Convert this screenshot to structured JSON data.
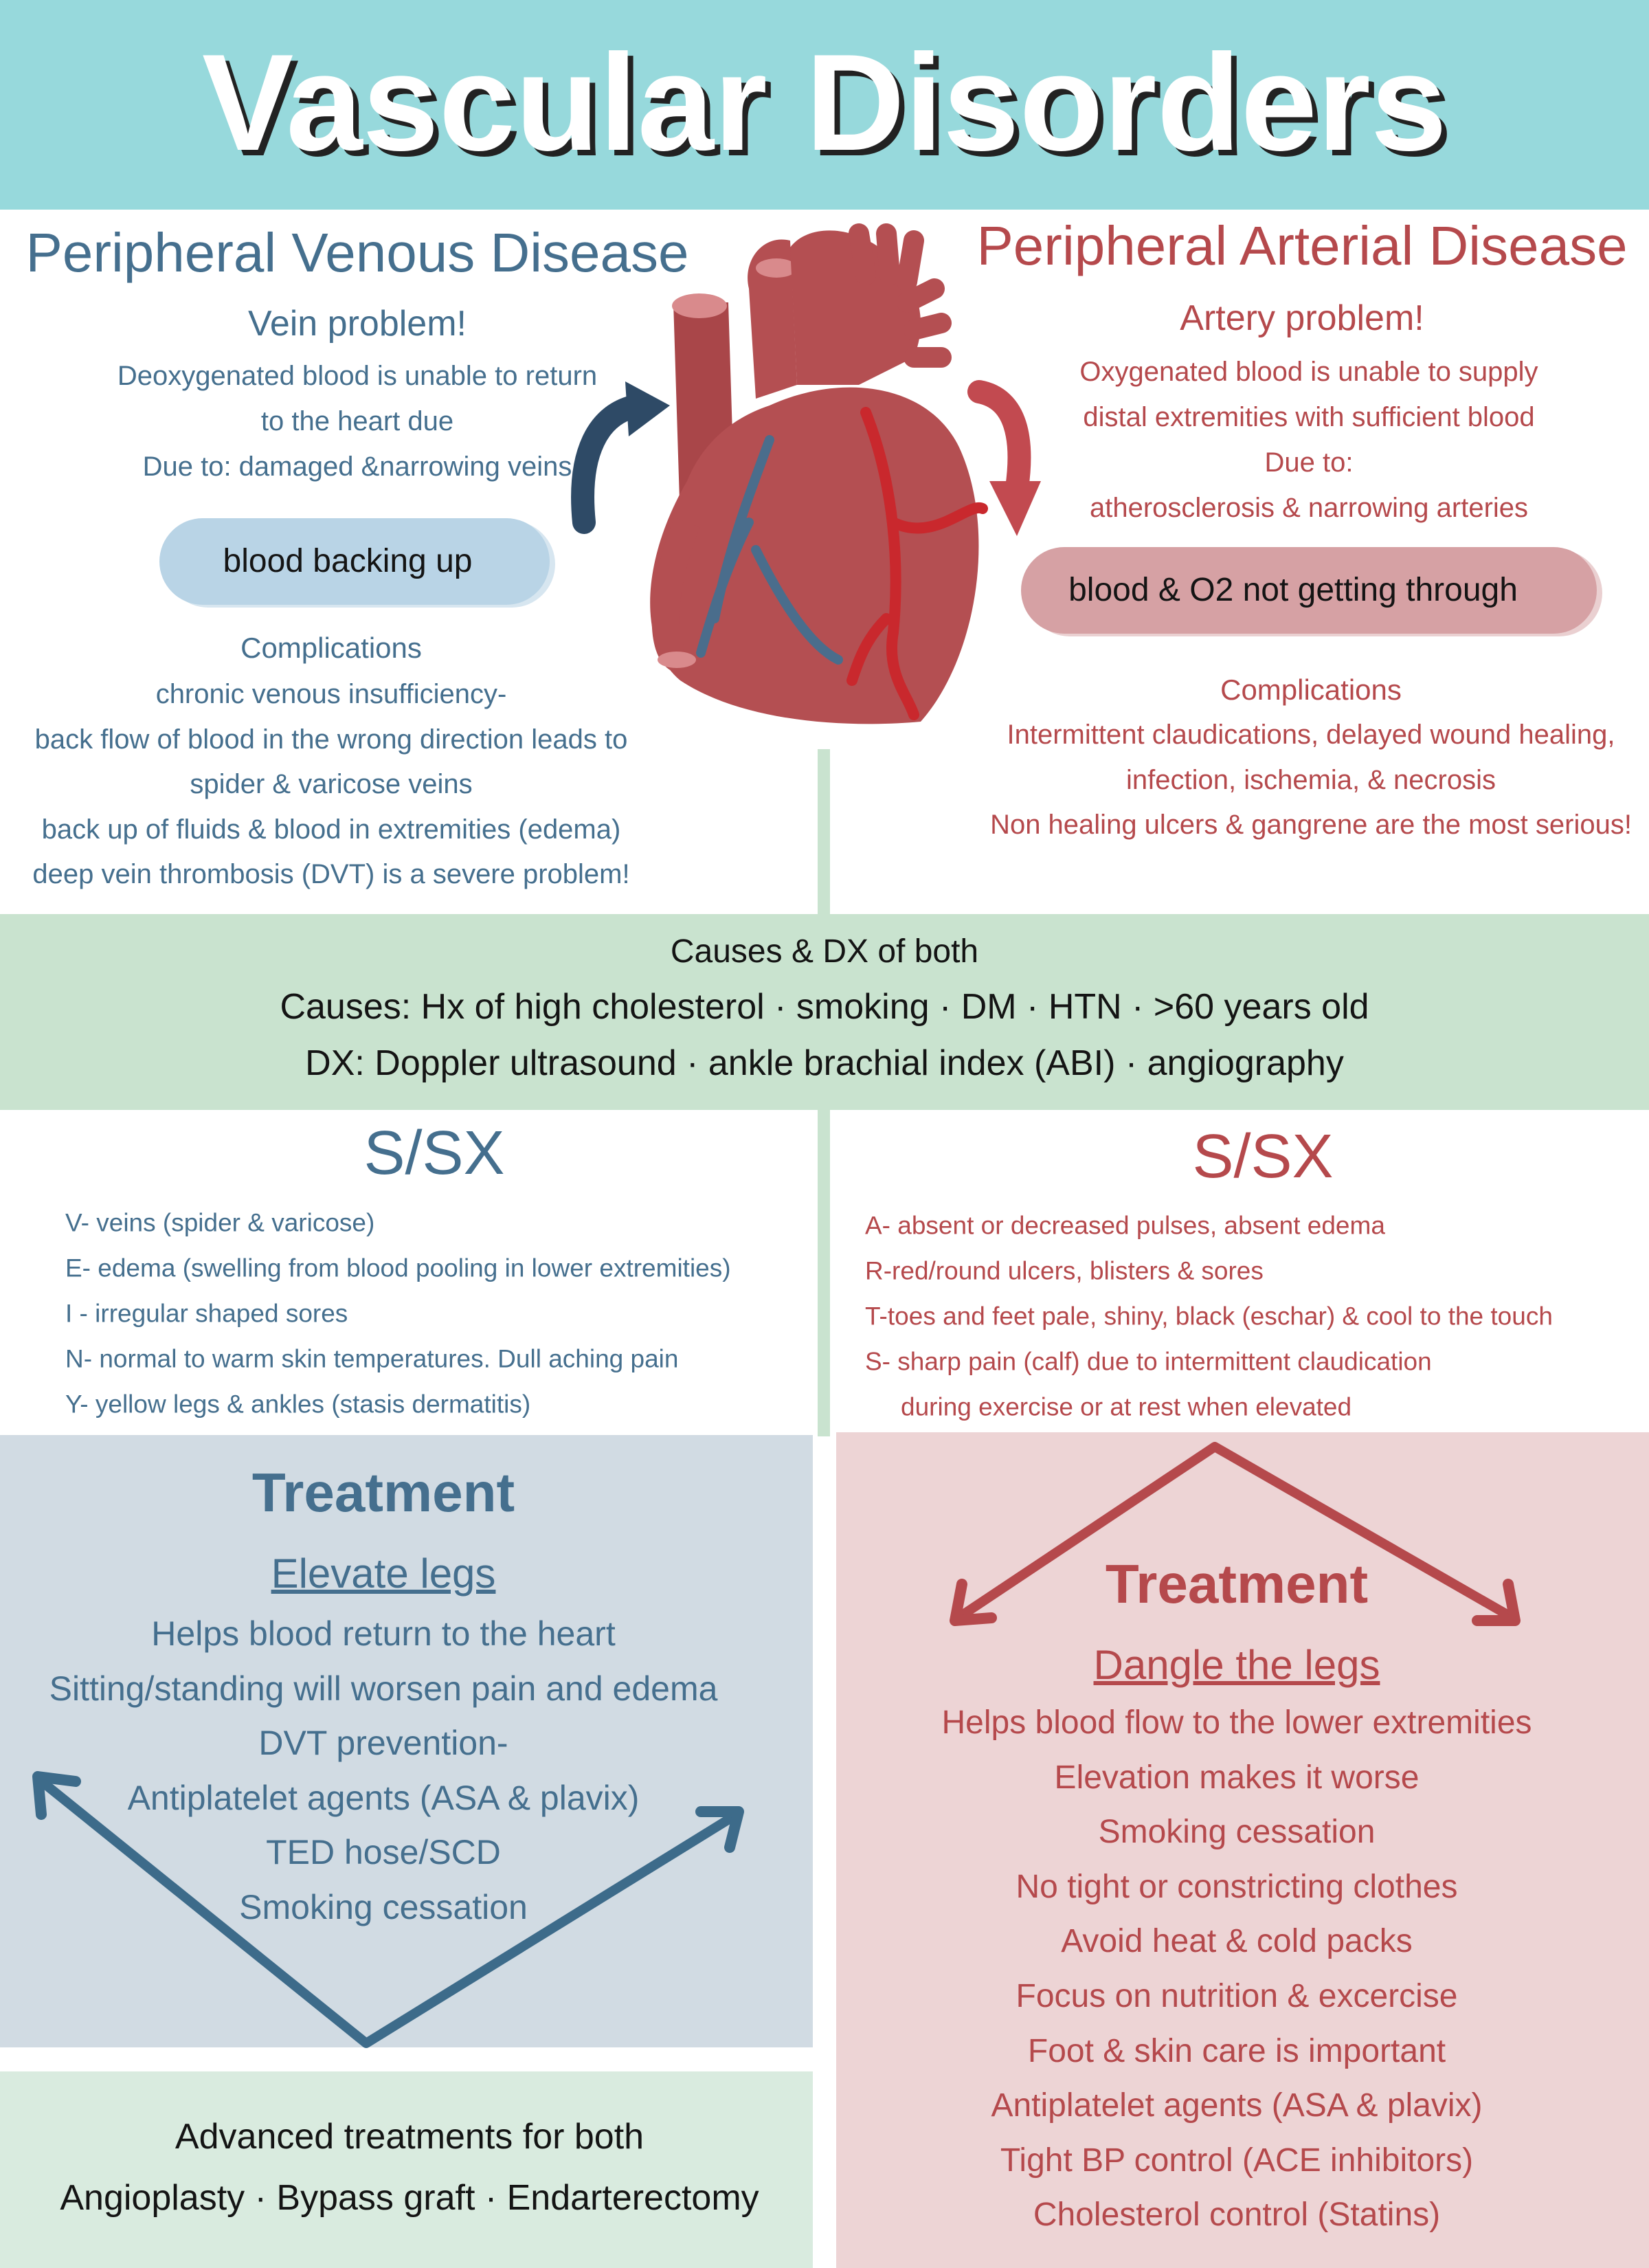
{
  "header": {
    "title": "Vascular Disorders"
  },
  "venous": {
    "title": "Peripheral Venous Disease",
    "subtitle": "Vein problem!",
    "description": [
      "Deoxygenated blood is unable to return",
      "to the heart due",
      "Due to: damaged &narrowing veins"
    ],
    "callout": "blood backing up",
    "complications_title": "Complications",
    "complications": [
      "chronic venous insufficiency-",
      "back flow of blood in the wrong direction  leads to",
      "spider & varicose veins",
      "back up of fluids & blood in extremities (edema)",
      "deep vein thrombosis (DVT) is a severe problem!"
    ]
  },
  "arterial": {
    "title": "Peripheral Arterial Disease",
    "subtitle": "Artery problem!",
    "description": [
      "Oxygenated blood is unable to supply",
      "distal extremities with sufficient blood",
      "Due to:",
      "atherosclerosis & narrowing arteries"
    ],
    "callout": "blood & O2 not getting through",
    "complications_title": "Complications",
    "complications": [
      "Intermittent claudications, delayed wound healing,",
      "infection, ischemia, & necrosis",
      "Non healing ulcers & gangrene are the most serious!"
    ]
  },
  "causes_dx": {
    "title": "Causes & DX of both",
    "lines": [
      "Causes: Hx of high cholesterol · smoking · DM · HTN · >60 years old",
      "DX: Doppler ultrasound · ankle brachial index (ABI) · angiography"
    ]
  },
  "venous_ssx": {
    "title": "S/SX",
    "items": [
      "V- veins (spider & varicose)",
      "E- edema (swelling from blood pooling in lower extremities)",
      "I -  irregular shaped sores",
      "N- normal to warm skin temperatures.  Dull aching pain",
      "Y- yellow legs & ankles (stasis dermatitis)"
    ]
  },
  "arterial_ssx": {
    "title": "S/SX",
    "items": [
      "A- absent or decreased pulses, absent edema",
      "R-red/round  ulcers, blisters & sores",
      "T-toes and feet pale, shiny, black (eschar) & cool to the touch",
      "S- sharp pain (calf) due to intermittent claudication",
      "during exercise or at rest when elevated"
    ]
  },
  "venous_treatment": {
    "title": "Treatment",
    "subtitle": "Elevate legs",
    "items": [
      "Helps blood return to the heart",
      "Sitting/standing will worsen pain and edema",
      "DVT prevention-",
      "Antiplatelet agents  (ASA & plavix)",
      "TED hose/SCD",
      "Smoking cessation"
    ]
  },
  "arterial_treatment": {
    "title": "Treatment",
    "subtitle": "Dangle the legs",
    "items": [
      "Helps blood flow to the  lower extremities",
      "Elevation makes it worse",
      "Smoking cessation",
      "No tight or constricting clothes",
      "Avoid heat & cold packs",
      "Focus on nutrition & excercise",
      "Foot & skin care is important",
      "Antiplatelet agents (ASA & plavix)",
      "Tight BP control (ACE inhibitors)",
      "Cholesterol control (Statins)"
    ]
  },
  "advanced": {
    "title": "Advanced treatments for both",
    "line": "Angioplasty  · Bypass graft · Endarterectomy"
  }
}
